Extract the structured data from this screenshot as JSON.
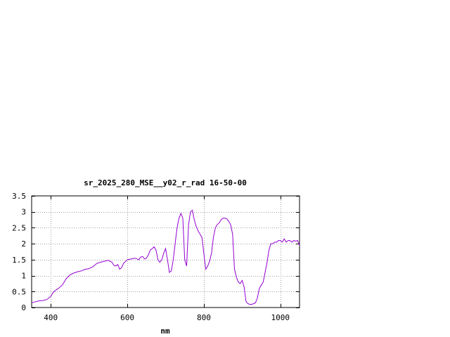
{
  "chart_data": {
    "type": "line",
    "title": "sr_2025_280_MSE__y02_r_rad 16-50-00",
    "xlabel": "nm",
    "ylabel": "",
    "xlim": [
      350,
      1050
    ],
    "ylim": [
      0,
      3.5
    ],
    "x_ticks": [
      400,
      600,
      800,
      1000
    ],
    "x_tick_labels": [
      "400",
      "600",
      "800",
      "1000"
    ],
    "y_ticks": [
      0,
      0.5,
      1,
      1.5,
      2,
      2.5,
      3,
      3.5
    ],
    "y_tick_labels": [
      "0",
      "0.5",
      "1",
      "1.5",
      "2",
      "2.5",
      "3",
      "3.5"
    ],
    "grid": true,
    "line_color": "#9400d3",
    "series": [
      {
        "x": [
          350,
          360,
          370,
          380,
          390,
          400,
          405,
          410,
          420,
          430,
          440,
          450,
          460,
          470,
          480,
          490,
          500,
          510,
          520,
          530,
          540,
          550,
          560,
          565,
          570,
          575,
          580,
          585,
          590,
          600,
          610,
          620,
          630,
          635,
          640,
          645,
          650,
          655,
          660,
          665,
          670,
          675,
          680,
          685,
          690,
          695,
          700,
          705,
          710,
          715,
          720,
          725,
          730,
          735,
          740,
          745,
          750,
          755,
          760,
          765,
          770,
          775,
          780,
          785,
          790,
          795,
          800,
          805,
          810,
          815,
          820,
          825,
          830,
          835,
          840,
          845,
          850,
          855,
          860,
          865,
          870,
          875,
          880,
          885,
          890,
          895,
          900,
          905,
          910,
          915,
          920,
          925,
          930,
          935,
          940,
          945,
          950,
          955,
          960,
          965,
          970,
          975,
          980,
          985,
          990,
          995,
          1000,
          1005,
          1010,
          1015,
          1020,
          1025,
          1030,
          1035,
          1040,
          1045,
          1050
        ],
        "y": [
          0.15,
          0.18,
          0.21,
          0.22,
          0.25,
          0.35,
          0.45,
          0.52,
          0.6,
          0.7,
          0.9,
          1.02,
          1.08,
          1.12,
          1.15,
          1.2,
          1.22,
          1.28,
          1.38,
          1.42,
          1.45,
          1.48,
          1.42,
          1.32,
          1.3,
          1.35,
          1.2,
          1.25,
          1.38,
          1.5,
          1.52,
          1.55,
          1.5,
          1.58,
          1.6,
          1.52,
          1.55,
          1.65,
          1.8,
          1.85,
          1.9,
          1.8,
          1.5,
          1.42,
          1.5,
          1.7,
          1.85,
          1.5,
          1.1,
          1.15,
          1.5,
          2.0,
          2.5,
          2.8,
          2.95,
          2.8,
          1.5,
          1.3,
          2.6,
          3.0,
          3.05,
          2.75,
          2.55,
          2.4,
          2.3,
          2.2,
          1.7,
          1.2,
          1.3,
          1.45,
          1.7,
          2.2,
          2.5,
          2.6,
          2.65,
          2.75,
          2.8,
          2.8,
          2.78,
          2.7,
          2.6,
          2.3,
          1.2,
          0.95,
          0.8,
          0.75,
          0.85,
          0.65,
          0.2,
          0.12,
          0.1,
          0.1,
          0.12,
          0.15,
          0.3,
          0.6,
          0.7,
          0.8,
          1.1,
          1.4,
          1.8,
          2.0,
          2.0,
          2.05,
          2.05,
          2.1,
          2.1,
          2.05,
          2.15,
          2.05,
          2.1,
          2.1,
          2.05,
          2.1,
          2.08,
          2.1,
          1.95
        ]
      }
    ]
  }
}
